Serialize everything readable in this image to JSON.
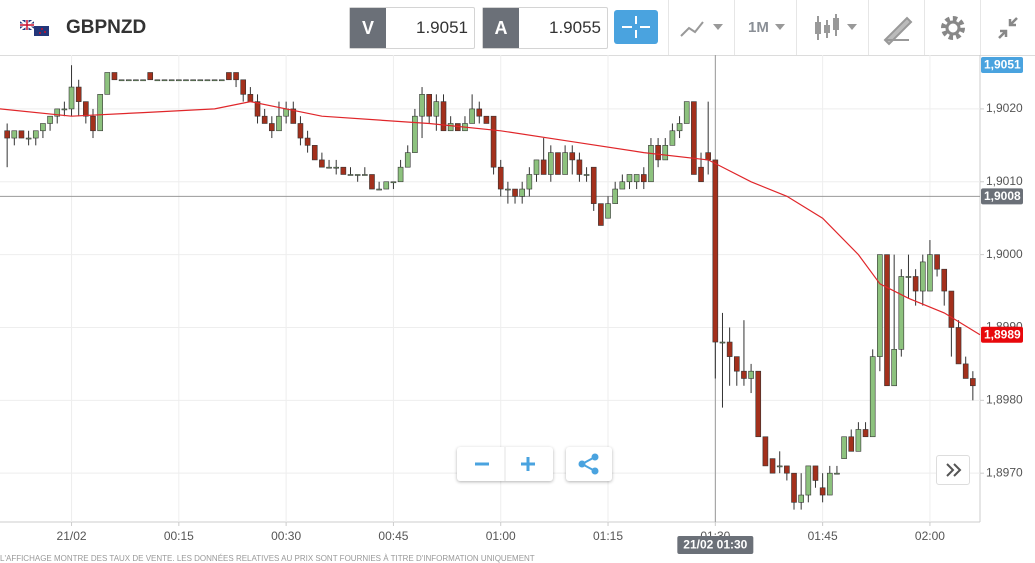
{
  "toolbar": {
    "symbol": "GBPNZD",
    "sell_label": "V",
    "sell_price": 1.9051,
    "buy_label": "A",
    "buy_price": 1.9055,
    "timeframe": "1M"
  },
  "chart_data": {
    "type": "candlestick",
    "up_color": "#8dc27e",
    "down_color": "#a3301c",
    "x": [
      -9,
      -8,
      -7,
      -6,
      -5,
      -4,
      -3,
      -2,
      -1,
      0,
      1,
      2,
      3,
      4,
      5,
      6,
      7,
      8,
      9,
      10,
      11,
      12,
      13,
      14,
      15,
      16,
      17,
      18,
      19,
      20,
      21,
      22,
      23,
      24,
      25,
      26,
      27,
      28,
      29,
      30,
      31,
      32,
      33,
      34,
      35,
      36,
      37,
      38,
      39,
      40,
      41,
      42,
      43,
      44,
      45,
      46,
      47,
      48,
      49,
      50,
      51,
      52,
      53,
      54,
      55,
      56,
      57,
      58,
      59,
      60,
      61,
      62,
      63,
      64,
      65,
      66,
      67,
      68,
      69,
      70,
      71,
      72,
      73,
      74,
      75,
      76,
      77,
      78,
      79,
      80,
      81,
      82,
      83,
      84,
      85,
      86,
      87,
      88,
      89,
      90,
      91,
      92,
      93,
      94,
      95,
      96,
      97,
      98,
      99,
      100,
      101,
      102,
      103,
      104,
      105,
      106,
      107,
      108,
      109,
      110,
      111,
      112,
      113,
      114,
      115,
      116,
      117,
      118,
      119,
      120,
      121,
      122,
      123,
      124,
      125,
      126
    ],
    "open": [
      1.9017,
      1.9016,
      1.9017,
      1.9016,
      1.9016,
      1.9017,
      1.9018,
      1.9019,
      1.902,
      1.902,
      1.9023,
      1.9021,
      1.9019,
      1.9017,
      1.9022,
      1.9025,
      1.9024,
      1.9024,
      1.9024,
      1.9024,
      1.9025,
      1.9024,
      1.9024,
      1.9024,
      1.9024,
      1.9024,
      1.9024,
      1.9024,
      1.9024,
      1.9024,
      1.9024,
      1.9025,
      1.9025,
      1.9024,
      1.9022,
      1.9021,
      1.9019,
      1.9018,
      1.9017,
      1.9019,
      1.902,
      1.9018,
      1.9016,
      1.9015,
      1.9013,
      1.9012,
      1.9012,
      1.9012,
      1.9011,
      1.9011,
      1.9011,
      1.9011,
      1.9009,
      1.9009,
      1.901,
      1.901,
      1.9012,
      1.9014,
      1.9019,
      1.9022,
      1.9019,
      1.9021,
      1.9017,
      1.9018,
      1.9017,
      1.9018,
      1.902,
      1.9019,
      1.9019,
      1.9012,
      1.9009,
      1.9009,
      1.9008,
      1.9009,
      1.9011,
      1.9013,
      1.9011,
      1.9014,
      1.9011,
      1.9014,
      1.9013,
      1.9011,
      1.9012,
      1.9007,
      1.9005,
      1.9007,
      1.9009,
      1.901,
      1.901,
      1.9011,
      1.901,
      1.9015,
      1.9013,
      1.9015,
      1.9017,
      1.9018,
      1.9021,
      1.9012,
      1.9014,
      1.9013,
      1.8988,
      1.8988,
      1.8986,
      1.8984,
      1.8983,
      1.8984,
      1.8975,
      1.8972,
      1.8971,
      1.8971,
      1.897,
      1.8966,
      1.8967,
      1.8971,
      1.8968,
      1.8967,
      1.897,
      1.8972,
      1.8975,
      1.8973,
      1.8976,
      1.8975,
      1.8986,
      1.9,
      1.8982,
      1.8987,
      1.8997,
      1.8997,
      1.8995,
      1.8995,
      1.9,
      1.8998,
      1.8995,
      1.899,
      1.8985,
      1.8983
    ],
    "high": [
      1.9018,
      1.9017,
      1.9017,
      1.9017,
      1.9017,
      1.9018,
      1.9019,
      1.902,
      1.9021,
      1.9026,
      1.9024,
      1.9021,
      1.902,
      1.9022,
      1.9025,
      1.9025,
      1.9024,
      1.9024,
      1.9024,
      1.9024,
      1.9025,
      1.9024,
      1.9024,
      1.9024,
      1.9024,
      1.9024,
      1.9024,
      1.9024,
      1.9024,
      1.9024,
      1.9024,
      1.9025,
      1.9025,
      1.9024,
      1.9023,
      1.9022,
      1.902,
      1.9019,
      1.9021,
      1.9021,
      1.9021,
      1.9019,
      1.9017,
      1.9015,
      1.9014,
      1.9013,
      1.9013,
      1.9012,
      1.9012,
      1.9011,
      1.9012,
      1.9011,
      1.901,
      1.901,
      1.901,
      1.9013,
      1.9015,
      1.902,
      1.9023,
      1.9022,
      1.9022,
      1.9022,
      1.9019,
      1.9018,
      1.9019,
      1.9022,
      1.9021,
      1.9019,
      1.9019,
      1.9013,
      1.901,
      1.9009,
      1.901,
      1.9012,
      1.9013,
      1.9016,
      1.9015,
      1.9014,
      1.9015,
      1.9015,
      1.9014,
      1.9012,
      1.9012,
      1.9007,
      1.9008,
      1.901,
      1.9011,
      1.9011,
      1.9011,
      1.9012,
      1.9016,
      1.9016,
      1.9016,
      1.9018,
      1.9019,
      1.9021,
      1.9021,
      1.9014,
      1.9021,
      1.9013,
      1.8992,
      1.899,
      1.8986,
      1.8991,
      1.8985,
      1.8984,
      1.8975,
      1.8972,
      1.8973,
      1.8971,
      1.897,
      1.897,
      1.8971,
      1.8971,
      1.897,
      1.8971,
      1.8971,
      1.8975,
      1.8976,
      1.8977,
      1.8977,
      1.8987,
      1.9,
      1.9,
      1.9,
      1.8998,
      1.9,
      1.8998,
      1.9,
      1.9002,
      1.9,
      1.8998,
      1.8995,
      1.8991,
      1.8986,
      1.8984
    ],
    "low": [
      1.9012,
      1.9015,
      1.9016,
      1.9015,
      1.9015,
      1.9016,
      1.9017,
      1.9018,
      1.9019,
      1.9019,
      1.9019,
      1.9018,
      1.9016,
      1.9017,
      1.9022,
      1.9024,
      1.9024,
      1.9024,
      1.9024,
      1.9024,
      1.9024,
      1.9024,
      1.9024,
      1.9024,
      1.9024,
      1.9024,
      1.9024,
      1.9024,
      1.9024,
      1.9024,
      1.9024,
      1.9024,
      1.9023,
      1.9021,
      1.9021,
      1.9018,
      1.9018,
      1.9016,
      1.9017,
      1.9018,
      1.9018,
      1.9015,
      1.9014,
      1.9013,
      1.9012,
      1.9012,
      1.9011,
      1.9011,
      1.9011,
      1.901,
      1.9011,
      1.9009,
      1.9009,
      1.9009,
      1.9009,
      1.901,
      1.9012,
      1.9014,
      1.9016,
      1.9018,
      1.9017,
      1.9017,
      1.9017,
      1.9017,
      1.9017,
      1.9018,
      1.9018,
      1.9018,
      1.9011,
      1.9008,
      1.9007,
      1.9007,
      1.9007,
      1.9008,
      1.901,
      1.9011,
      1.901,
      1.9011,
      1.9011,
      1.9011,
      1.901,
      1.901,
      1.9006,
      1.9004,
      1.9005,
      1.9007,
      1.9009,
      1.9009,
      1.9009,
      1.9009,
      1.901,
      1.9012,
      1.9013,
      1.9015,
      1.9016,
      1.9018,
      1.9011,
      1.901,
      1.9011,
      1.8983,
      1.8979,
      1.8982,
      1.8982,
      1.8982,
      1.8981,
      1.8975,
      1.8971,
      1.897,
      1.897,
      1.8969,
      1.8965,
      1.8965,
      1.8966,
      1.8968,
      1.8966,
      1.8967,
      1.897,
      1.8972,
      1.8973,
      1.8973,
      1.8975,
      1.8975,
      1.8984,
      1.8982,
      1.8982,
      1.8986,
      1.8994,
      1.8993,
      1.8993,
      1.8995,
      1.8997,
      1.8993,
      1.8986,
      1.8985,
      1.8983,
      1.898
    ],
    "close": [
      1.9016,
      1.9017,
      1.9016,
      1.9016,
      1.9017,
      1.9018,
      1.9019,
      1.902,
      1.902,
      1.9023,
      1.9021,
      1.9019,
      1.9017,
      1.9022,
      1.9025,
      1.9024,
      1.9024,
      1.9024,
      1.9024,
      1.9024,
      1.9024,
      1.9024,
      1.9024,
      1.9024,
      1.9024,
      1.9024,
      1.9024,
      1.9024,
      1.9024,
      1.9024,
      1.9024,
      1.9024,
      1.9024,
      1.9022,
      1.9021,
      1.9019,
      1.9018,
      1.9017,
      1.9019,
      1.902,
      1.9018,
      1.9016,
      1.9015,
      1.9013,
      1.9012,
      1.9012,
      1.9012,
      1.9011,
      1.9011,
      1.9011,
      1.9011,
      1.9009,
      1.9009,
      1.901,
      1.901,
      1.9012,
      1.9014,
      1.9019,
      1.9022,
      1.9019,
      1.9021,
      1.9017,
      1.9018,
      1.9017,
      1.9018,
      1.902,
      1.9019,
      1.9018,
      1.9012,
      1.9009,
      1.9009,
      1.9008,
      1.9009,
      1.9011,
      1.9013,
      1.9011,
      1.9014,
      1.9011,
      1.9014,
      1.9013,
      1.9011,
      1.9011,
      1.9007,
      1.9004,
      1.9007,
      1.9009,
      1.901,
      1.9011,
      1.9011,
      1.901,
      1.9015,
      1.9013,
      1.9015,
      1.9017,
      1.9018,
      1.9021,
      1.9011,
      1.901,
      1.9013,
      1.8988,
      1.8988,
      1.8986,
      1.8984,
      1.8983,
      1.8984,
      1.8975,
      1.8971,
      1.897,
      1.8971,
      1.897,
      1.8966,
      1.8967,
      1.8971,
      1.8969,
      1.8967,
      1.897,
      1.897,
      1.8975,
      1.8973,
      1.8976,
      1.8975,
      1.8986,
      1.9,
      1.8982,
      1.8987,
      1.8997,
      1.8997,
      1.8995,
      1.8999,
      1.9,
      1.8998,
      1.8995,
      1.899,
      1.8985,
      1.8983,
      1.8982
    ],
    "line": {
      "color": "#e0262a",
      "x": [
        -10,
        0,
        10,
        20,
        25,
        35,
        50,
        60,
        70,
        80,
        89,
        95,
        100,
        105,
        110,
        113,
        117,
        122,
        127
      ],
      "values": [
        1.902,
        1.9019,
        1.90195,
        1.902,
        1.9021,
        1.9019,
        1.9018,
        1.9017,
        1.90155,
        1.9014,
        1.9013,
        1.901,
        1.9008,
        1.9005,
        1.9,
        1.8996,
        1.8994,
        1.8992,
        1.8989
      ]
    },
    "xlim": [
      -10,
      127
    ],
    "xticks": [
      {
        "value": 0,
        "label": "21/02"
      },
      {
        "value": 15,
        "label": "00:15"
      },
      {
        "value": 30,
        "label": "00:30"
      },
      {
        "value": 45,
        "label": "00:45"
      },
      {
        "value": 60,
        "label": "01:00"
      },
      {
        "value": 75,
        "label": "01:15"
      },
      {
        "value": 90,
        "label": "01:30"
      },
      {
        "value": 105,
        "label": "01:45"
      },
      {
        "value": 120,
        "label": "02:00"
      }
    ],
    "ylim": [
      1.89633,
      1.90274
    ],
    "yticks": [
      {
        "value": 1.897,
        "label": "1,8970"
      },
      {
        "value": 1.898,
        "label": "1,8980"
      },
      {
        "value": 1.899,
        "label": "1,8990"
      },
      {
        "value": 1.9,
        "label": "1,9000"
      },
      {
        "value": 1.901,
        "label": "1,9010"
      },
      {
        "value": 1.902,
        "label": "1,9020"
      }
    ],
    "grid": true,
    "price_tags": [
      {
        "value": 1.9051,
        "label": "1,9051",
        "color": "#4aa3df"
      },
      {
        "value": 1.8989,
        "label": "1,8989",
        "color": "#e8080c"
      }
    ],
    "crosshair": {
      "x": 90,
      "y": 1.9008,
      "x_label": "21/02 01:30",
      "y_label": "1,9008",
      "color": "#6b7078"
    }
  },
  "footnote": "L'AFFICHAGE MONTRE DES TAUX DE VENTE. LES DONNÉES RELATIVES AU PRIX SONT FOURNIES À TITRE D'INFORMATION UNIQUEMENT"
}
